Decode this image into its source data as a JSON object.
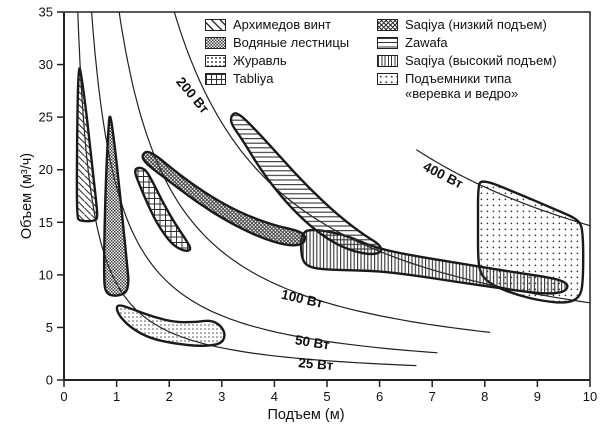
{
  "legend": {
    "left": [
      {
        "key": "archimedes-screw",
        "label": "Архимедов винт",
        "pattern": "diag"
      },
      {
        "key": "water-ladders",
        "label": "Водяные лестницы",
        "pattern": "checker"
      },
      {
        "key": "shadoof",
        "label": "Журавль",
        "pattern": "dots"
      },
      {
        "key": "tabliya",
        "label": "Tabliya",
        "pattern": "grid"
      }
    ],
    "right": [
      {
        "key": "saqiya-low-lift",
        "label": "Saqiya (низкий подъем)",
        "pattern": "xhatch"
      },
      {
        "key": "zawafa",
        "label": "Zawafa",
        "pattern": "hlines"
      },
      {
        "key": "saqiya-high-lift",
        "label": "Saqiya (высокий подъем)",
        "pattern": "vlines"
      },
      {
        "key": "rope-and-bucket",
        "label": "Подъемники типа",
        "label2": "«веревка и ведро»",
        "pattern": "dots-sparse"
      }
    ]
  },
  "chart_data": {
    "type": "area",
    "subtype": "performance-envelopes-with-iso-power-curves",
    "xlabel": "Подъем (м)",
    "ylabel": "Объем (м³/ч)",
    "xlim": [
      0,
      10
    ],
    "ylim": [
      0,
      35
    ],
    "x_ticks": [
      0,
      1,
      2,
      3,
      4,
      5,
      6,
      7,
      8,
      9,
      10
    ],
    "y_ticks": [
      0,
      5,
      10,
      15,
      20,
      25,
      30,
      35
    ],
    "grid": false,
    "legend_position": "top-right-inside",
    "power_curves": [
      {
        "label": "25 Вт",
        "watts": 25,
        "k_m4_per_h": 9.17,
        "x_range": [
          0.262,
          6.7
        ],
        "label_pos": {
          "x": 4.78,
          "y": 1.08
        },
        "label_angle_deg": 5
      },
      {
        "label": "50 Вт",
        "watts": 50,
        "k_m4_per_h": 18.35,
        "x_range": [
          0.524,
          7.1
        ],
        "label_pos": {
          "x": 4.71,
          "y": 3.15
        },
        "label_angle_deg": 9
      },
      {
        "label": "100 Вт",
        "watts": 100,
        "k_m4_per_h": 36.7,
        "x_range": [
          1.049,
          8.1
        ],
        "label_pos": {
          "x": 4.51,
          "y": 7.3
        },
        "label_angle_deg": 13
      },
      {
        "label": "200 Вт",
        "watts": 200,
        "k_m4_per_h": 73.4,
        "x_range": [
          2.097,
          10
        ],
        "label_pos": {
          "x": 2.38,
          "y": 26.8
        },
        "label_angle_deg": 50
      },
      {
        "label": "400 Вт",
        "watts": 400,
        "k_m4_per_h": 146.8,
        "x_range": [
          6.7,
          10
        ],
        "label_pos": {
          "x": 7.17,
          "y": 19.1
        },
        "label_angle_deg": 27
      }
    ],
    "regions": [
      {
        "key": "rope-and-bucket",
        "label": "Подъемники типа «веревка и ведро»",
        "pattern": "dots-sparse",
        "points": [
          [
            7.93,
            19.15
          ],
          [
            8.6,
            17.8
          ],
          [
            9.3,
            16.3
          ],
          [
            9.77,
            15.3
          ],
          [
            9.87,
            14.3
          ],
          [
            9.87,
            9.2
          ],
          [
            9.8,
            7.8
          ],
          [
            9.55,
            7.3
          ],
          [
            9.1,
            7.5
          ],
          [
            8.6,
            8.1
          ],
          [
            8.15,
            9.0
          ],
          [
            7.92,
            10.0
          ],
          [
            7.87,
            11.5
          ],
          [
            7.87,
            15.0
          ],
          [
            7.87,
            18.2
          ]
        ]
      },
      {
        "key": "saqiya-high-lift",
        "label": "Saqiya (высокий подъем)",
        "pattern": "vlines",
        "points": [
          [
            4.65,
            14.4
          ],
          [
            5.3,
            13.9
          ],
          [
            5.9,
            12.6
          ],
          [
            6.6,
            11.85
          ],
          [
            7.4,
            11.2
          ],
          [
            8.3,
            10.45
          ],
          [
            9.1,
            9.85
          ],
          [
            9.45,
            9.5
          ],
          [
            9.6,
            9.0
          ],
          [
            9.5,
            8.3
          ],
          [
            9.1,
            8.2
          ],
          [
            8.4,
            8.65
          ],
          [
            7.5,
            9.3
          ],
          [
            6.6,
            10.0
          ],
          [
            5.9,
            10.4
          ],
          [
            5.2,
            10.45
          ],
          [
            4.75,
            10.6
          ],
          [
            4.55,
            11.1
          ],
          [
            4.5,
            12.5
          ],
          [
            4.52,
            13.8
          ]
        ]
      },
      {
        "key": "zawafa",
        "label": "Zawafa",
        "pattern": "hlines",
        "points": [
          [
            3.3,
            25.5
          ],
          [
            3.7,
            23.5
          ],
          [
            4.15,
            21.0
          ],
          [
            4.65,
            18.3
          ],
          [
            5.2,
            15.7
          ],
          [
            5.7,
            13.8
          ],
          [
            6.0,
            12.9
          ],
          [
            6.05,
            12.2
          ],
          [
            5.85,
            11.9
          ],
          [
            5.45,
            12.3
          ],
          [
            5.0,
            13.4
          ],
          [
            4.55,
            15.2
          ],
          [
            4.1,
            17.6
          ],
          [
            3.7,
            20.3
          ],
          [
            3.4,
            22.8
          ],
          [
            3.17,
            24.4
          ],
          [
            3.18,
            25.2
          ]
        ]
      },
      {
        "key": "saqiya-low-lift",
        "label": "Saqiya (низкий подъем)",
        "pattern": "xhatch",
        "points": [
          [
            1.62,
            21.9
          ],
          [
            2.2,
            19.5
          ],
          [
            2.8,
            17.4
          ],
          [
            3.4,
            15.8
          ],
          [
            4.0,
            14.7
          ],
          [
            4.45,
            14.2
          ],
          [
            4.6,
            13.7
          ],
          [
            4.55,
            12.9
          ],
          [
            4.25,
            12.75
          ],
          [
            3.7,
            13.6
          ],
          [
            3.1,
            15.1
          ],
          [
            2.5,
            17.0
          ],
          [
            1.95,
            19.1
          ],
          [
            1.55,
            20.6
          ],
          [
            1.47,
            21.4
          ]
        ]
      },
      {
        "key": "tabliya",
        "label": "Tabliya",
        "pattern": "grid",
        "points": [
          [
            1.33,
            19.9
          ],
          [
            1.44,
            18.5
          ],
          [
            1.6,
            16.6
          ],
          [
            1.8,
            14.6
          ],
          [
            2.05,
            12.9
          ],
          [
            2.28,
            12.25
          ],
          [
            2.42,
            12.35
          ],
          [
            2.35,
            13.1
          ],
          [
            2.12,
            14.8
          ],
          [
            1.9,
            16.7
          ],
          [
            1.7,
            18.7
          ],
          [
            1.56,
            20.0
          ],
          [
            1.41,
            20.25
          ]
        ]
      },
      {
        "key": "shadoof",
        "label": "Журавль",
        "pattern": "dots",
        "points": [
          [
            1.04,
            7.2
          ],
          [
            1.35,
            6.65
          ],
          [
            1.7,
            6.0
          ],
          [
            2.1,
            5.5
          ],
          [
            2.5,
            5.5
          ],
          [
            2.8,
            5.7
          ],
          [
            3.0,
            5.1
          ],
          [
            3.07,
            4.2
          ],
          [
            2.98,
            3.4
          ],
          [
            2.6,
            3.2
          ],
          [
            2.1,
            3.45
          ],
          [
            1.65,
            3.95
          ],
          [
            1.32,
            4.8
          ],
          [
            1.08,
            5.9
          ],
          [
            0.99,
            6.8
          ]
        ]
      },
      {
        "key": "water-ladders",
        "label": "Водяные лестницы",
        "pattern": "checker",
        "points": [
          [
            0.87,
            25.7
          ],
          [
            0.96,
            22.5
          ],
          [
            1.04,
            18.8
          ],
          [
            1.13,
            14.5
          ],
          [
            1.21,
            10.5
          ],
          [
            1.23,
            9.2
          ],
          [
            1.18,
            8.3
          ],
          [
            1.03,
            8.0
          ],
          [
            0.87,
            8.05
          ],
          [
            0.78,
            8.5
          ],
          [
            0.76,
            9.8
          ],
          [
            0.77,
            14.5
          ],
          [
            0.8,
            19.5
          ],
          [
            0.84,
            23.5
          ]
        ]
      },
      {
        "key": "archimedes-screw",
        "label": "Архимедов винт",
        "pattern": "diag",
        "points": [
          [
            0.3,
            29.9
          ],
          [
            0.4,
            26.5
          ],
          [
            0.5,
            22.0
          ],
          [
            0.6,
            17.5
          ],
          [
            0.64,
            15.6
          ],
          [
            0.6,
            15.1
          ],
          [
            0.3,
            15.1
          ],
          [
            0.245,
            15.5
          ],
          [
            0.245,
            21.0
          ],
          [
            0.26,
            27.0
          ],
          [
            0.28,
            29.3
          ]
        ]
      }
    ]
  }
}
